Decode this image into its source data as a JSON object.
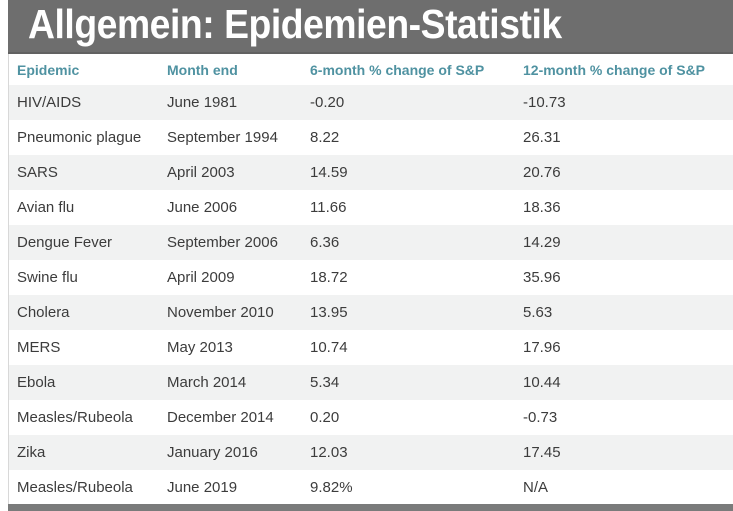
{
  "title": "Allgemein: Epidemien-Statistik",
  "chart_data": {
    "type": "table",
    "title": "Allgemein: Epidemien-Statistik",
    "columns": [
      "Epidemic",
      "Month end",
      "6-month % change of S&P",
      "12-month % change of S&P"
    ],
    "rows": [
      [
        "HIV/AIDS",
        "June 1981",
        "-0.20",
        "-10.73"
      ],
      [
        "Pneumonic plague",
        "September 1994",
        "8.22",
        "26.31"
      ],
      [
        "SARS",
        "April 2003",
        "14.59",
        "20.76"
      ],
      [
        "Avian flu",
        "June 2006",
        "11.66",
        "18.36"
      ],
      [
        "Dengue Fever",
        "September 2006",
        "6.36",
        "14.29"
      ],
      [
        "Swine flu",
        "April 2009",
        "18.72",
        "35.96"
      ],
      [
        "Cholera",
        "November 2010",
        "13.95",
        "5.63"
      ],
      [
        "MERS",
        "May 2013",
        "10.74",
        "17.96"
      ],
      [
        "Ebola",
        "March 2014",
        "5.34",
        "10.44"
      ],
      [
        "Measles/Rubeola",
        "December 2014",
        "0.20",
        "-0.73"
      ],
      [
        "Zika",
        "January 2016",
        "12.03",
        "17.45"
      ],
      [
        "Measles/Rubeola",
        "June 2019",
        "9.82%",
        "N/A"
      ]
    ]
  },
  "colors": {
    "title_bar_bg": "#6e6e6e",
    "title_text": "#ffffff",
    "column_header_text": "#4f92a1",
    "cell_text": "#3c3c3c",
    "row_bg": "#ffffff",
    "alt_row_bg": "#f1f2f2",
    "bottom_bar_bg": "#7a7b7b",
    "table_border": "#d8d8d8"
  }
}
